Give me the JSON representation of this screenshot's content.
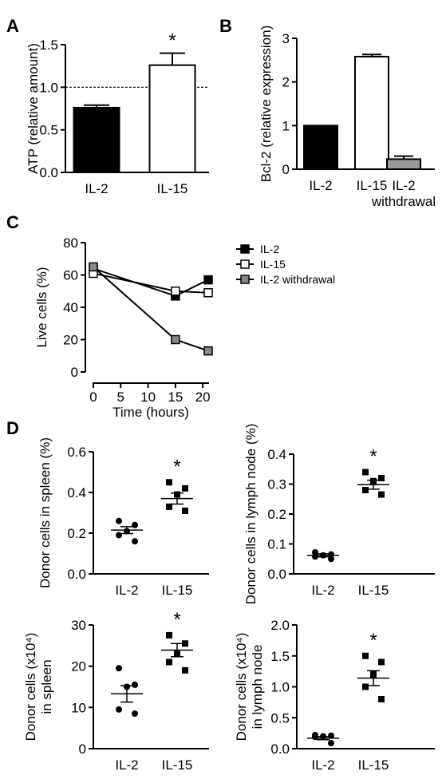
{
  "panel_labels": [
    "A",
    "B",
    "C",
    "D"
  ],
  "chart_data": [
    {
      "id": "A",
      "type": "bar",
      "categories": [
        "IL-2",
        "IL-15"
      ],
      "values": [
        0.76,
        1.26
      ],
      "errors": [
        0.03,
        0.14
      ],
      "fills": [
        "#000000",
        "#ffffff"
      ],
      "ylabel": "ATP (relative amount)",
      "ylim": [
        0,
        1.5
      ],
      "yticks": [
        0,
        0.5,
        1.0,
        1.5
      ],
      "ytick_labels": [
        "0.0",
        "0.5",
        "1.0",
        "1.5"
      ],
      "reference_line": 1.0,
      "significance": [
        "",
        "*"
      ]
    },
    {
      "id": "B",
      "type": "bar",
      "categories": [
        "IL-2",
        "IL-15",
        "IL-2 withdrawal"
      ],
      "category_lines": [
        [
          "IL-2"
        ],
        [
          "IL-15"
        ],
        [
          "IL-2",
          "withdrawal"
        ]
      ],
      "values": [
        1.0,
        2.58,
        0.23
      ],
      "errors": [
        0.0,
        0.05,
        0.07
      ],
      "fills": [
        "#000000",
        "#ffffff",
        "#999999"
      ],
      "ylabel": "Bcl-2 (relative expression)",
      "ylim": [
        0,
        3
      ],
      "yticks": [
        0,
        1,
        2,
        3
      ],
      "ytick_labels": [
        "0",
        "1",
        "2",
        "3"
      ]
    },
    {
      "id": "C",
      "type": "line",
      "x": [
        0,
        15,
        21
      ],
      "series": [
        {
          "name": "IL-2",
          "values": [
            64,
            47,
            57
          ],
          "marker_fill": "#000000"
        },
        {
          "name": "IL-15",
          "values": [
            61,
            50,
            49
          ],
          "marker_fill": "#ffffff"
        },
        {
          "name": "IL-2 withdrawal",
          "values": [
            65,
            20,
            13
          ],
          "marker_fill": "#888888"
        }
      ],
      "xlabel": "Time (hours)",
      "ylabel": "Live cells (%)",
      "xlim": [
        0,
        21
      ],
      "ylim": [
        0,
        80
      ],
      "xticks": [
        0,
        5,
        10,
        15,
        20
      ],
      "yticks": [
        0,
        20,
        40,
        60,
        80
      ],
      "legend_position": "right"
    },
    {
      "id": "D1",
      "type": "scatter",
      "categories": [
        "IL-2",
        "IL-15"
      ],
      "points": [
        [
          0.26,
          0.24,
          0.21,
          0.19,
          0.16
        ],
        [
          0.45,
          0.42,
          0.39,
          0.33,
          0.31
        ]
      ],
      "means": [
        0.215,
        0.37
      ],
      "sems": [
        0.017,
        0.027
      ],
      "marker": [
        "circle",
        "square"
      ],
      "ylabel_lines": [
        "Donor cells in spleen (%)"
      ],
      "ylim": [
        0,
        0.6
      ],
      "yticks": [
        0,
        0.2,
        0.4,
        0.6
      ],
      "ytick_labels": [
        "0.0",
        "0.2",
        "0.4",
        "0.6"
      ],
      "significance": [
        "",
        "*"
      ]
    },
    {
      "id": "D2",
      "type": "scatter",
      "categories": [
        "IL-2",
        "IL-15"
      ],
      "points": [
        [
          0.072,
          0.065,
          0.062,
          0.058,
          0.05
        ],
        [
          0.34,
          0.32,
          0.31,
          0.28,
          0.265
        ]
      ],
      "means": [
        0.062,
        0.298
      ],
      "sems": [
        0.005,
        0.015
      ],
      "marker": [
        "circle",
        "square"
      ],
      "ylabel_lines": [
        "Donor cells in lymph node (%)"
      ],
      "ylim": [
        0,
        0.4
      ],
      "yticks": [
        0,
        0.1,
        0.2,
        0.3,
        0.4
      ],
      "ytick_labels": [
        "0.0",
        "0.1",
        "0.2",
        "0.3",
        "0.4"
      ],
      "significance": [
        "",
        "*"
      ]
    },
    {
      "id": "D3",
      "type": "scatter",
      "categories": [
        "IL-2",
        "IL-15"
      ],
      "points": [
        [
          19.5,
          15.5,
          15,
          9.5,
          8.5
        ],
        [
          27.5,
          25.5,
          23,
          21,
          19
        ]
      ],
      "means": [
        13.3,
        23.9
      ],
      "sems": [
        2.0,
        1.6
      ],
      "marker": [
        "circle",
        "square"
      ],
      "ylabel_lines": [
        "Donor cells (x10⁴)",
        "in spleen"
      ],
      "ylim": [
        0,
        30
      ],
      "yticks": [
        0,
        10,
        20,
        30
      ],
      "ytick_labels": [
        "0",
        "10",
        "20",
        "30"
      ],
      "significance": [
        "",
        "*"
      ]
    },
    {
      "id": "D4",
      "type": "scatter",
      "categories": [
        "IL-2",
        "IL-15"
      ],
      "points": [
        [
          0.22,
          0.21,
          0.2,
          0.19,
          0.09
        ],
        [
          1.5,
          1.4,
          1.2,
          1.0,
          0.8
        ]
      ],
      "means": [
        0.17,
        1.14
      ],
      "sems": [
        0.025,
        0.12
      ],
      "marker": [
        "circle",
        "square"
      ],
      "ylabel_lines": [
        "Donor cells (x10⁴)",
        "in lymph node"
      ],
      "ylim": [
        0,
        2.0
      ],
      "yticks": [
        0,
        0.5,
        1.0,
        1.5,
        2.0
      ],
      "ytick_labels": [
        "0.0",
        "0.5",
        "1.0",
        "1.5",
        "2.0"
      ],
      "significance": [
        "",
        "*"
      ]
    }
  ]
}
